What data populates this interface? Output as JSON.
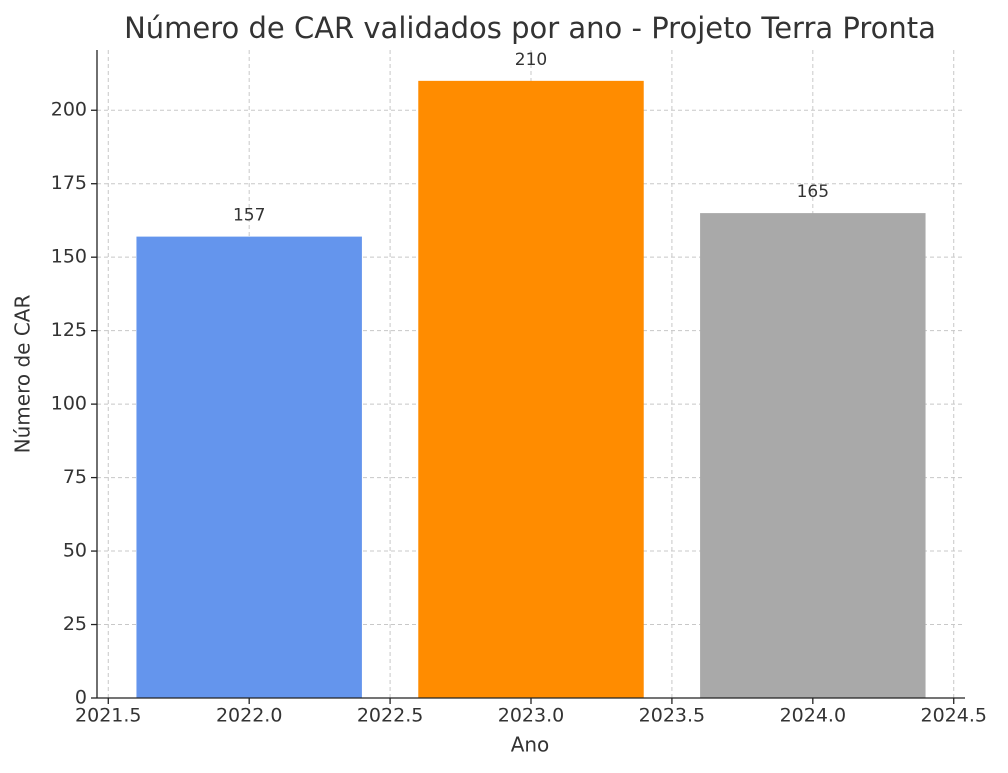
{
  "chart_data": {
    "type": "bar",
    "title": "Número de CAR validados por ano - Projeto Terra Pronta",
    "x_label": "Ano",
    "y_label": "Número de CAR",
    "x": [
      2022,
      2023,
      2024
    ],
    "values": [
      157,
      210,
      165
    ],
    "colors": [
      "#6495ed",
      "#ff8c00",
      "#a9a9a9"
    ],
    "xlim": [
      2021.46,
      2024.54
    ],
    "xticks": [
      2021.5,
      {
        "value": 2022.0,
        "label": "2022.0"
      },
      2022.5,
      {
        "value": 2023.0,
        "label": "2023.0"
      },
      2023.5,
      {
        "value": 2024.0,
        "label": "2024.0"
      },
      2024.5
    ],
    "ylim": [
      0,
      220.5
    ],
    "yticks": [
      0,
      25,
      50,
      75,
      100,
      125,
      150,
      175,
      200
    ],
    "grid": true
  }
}
